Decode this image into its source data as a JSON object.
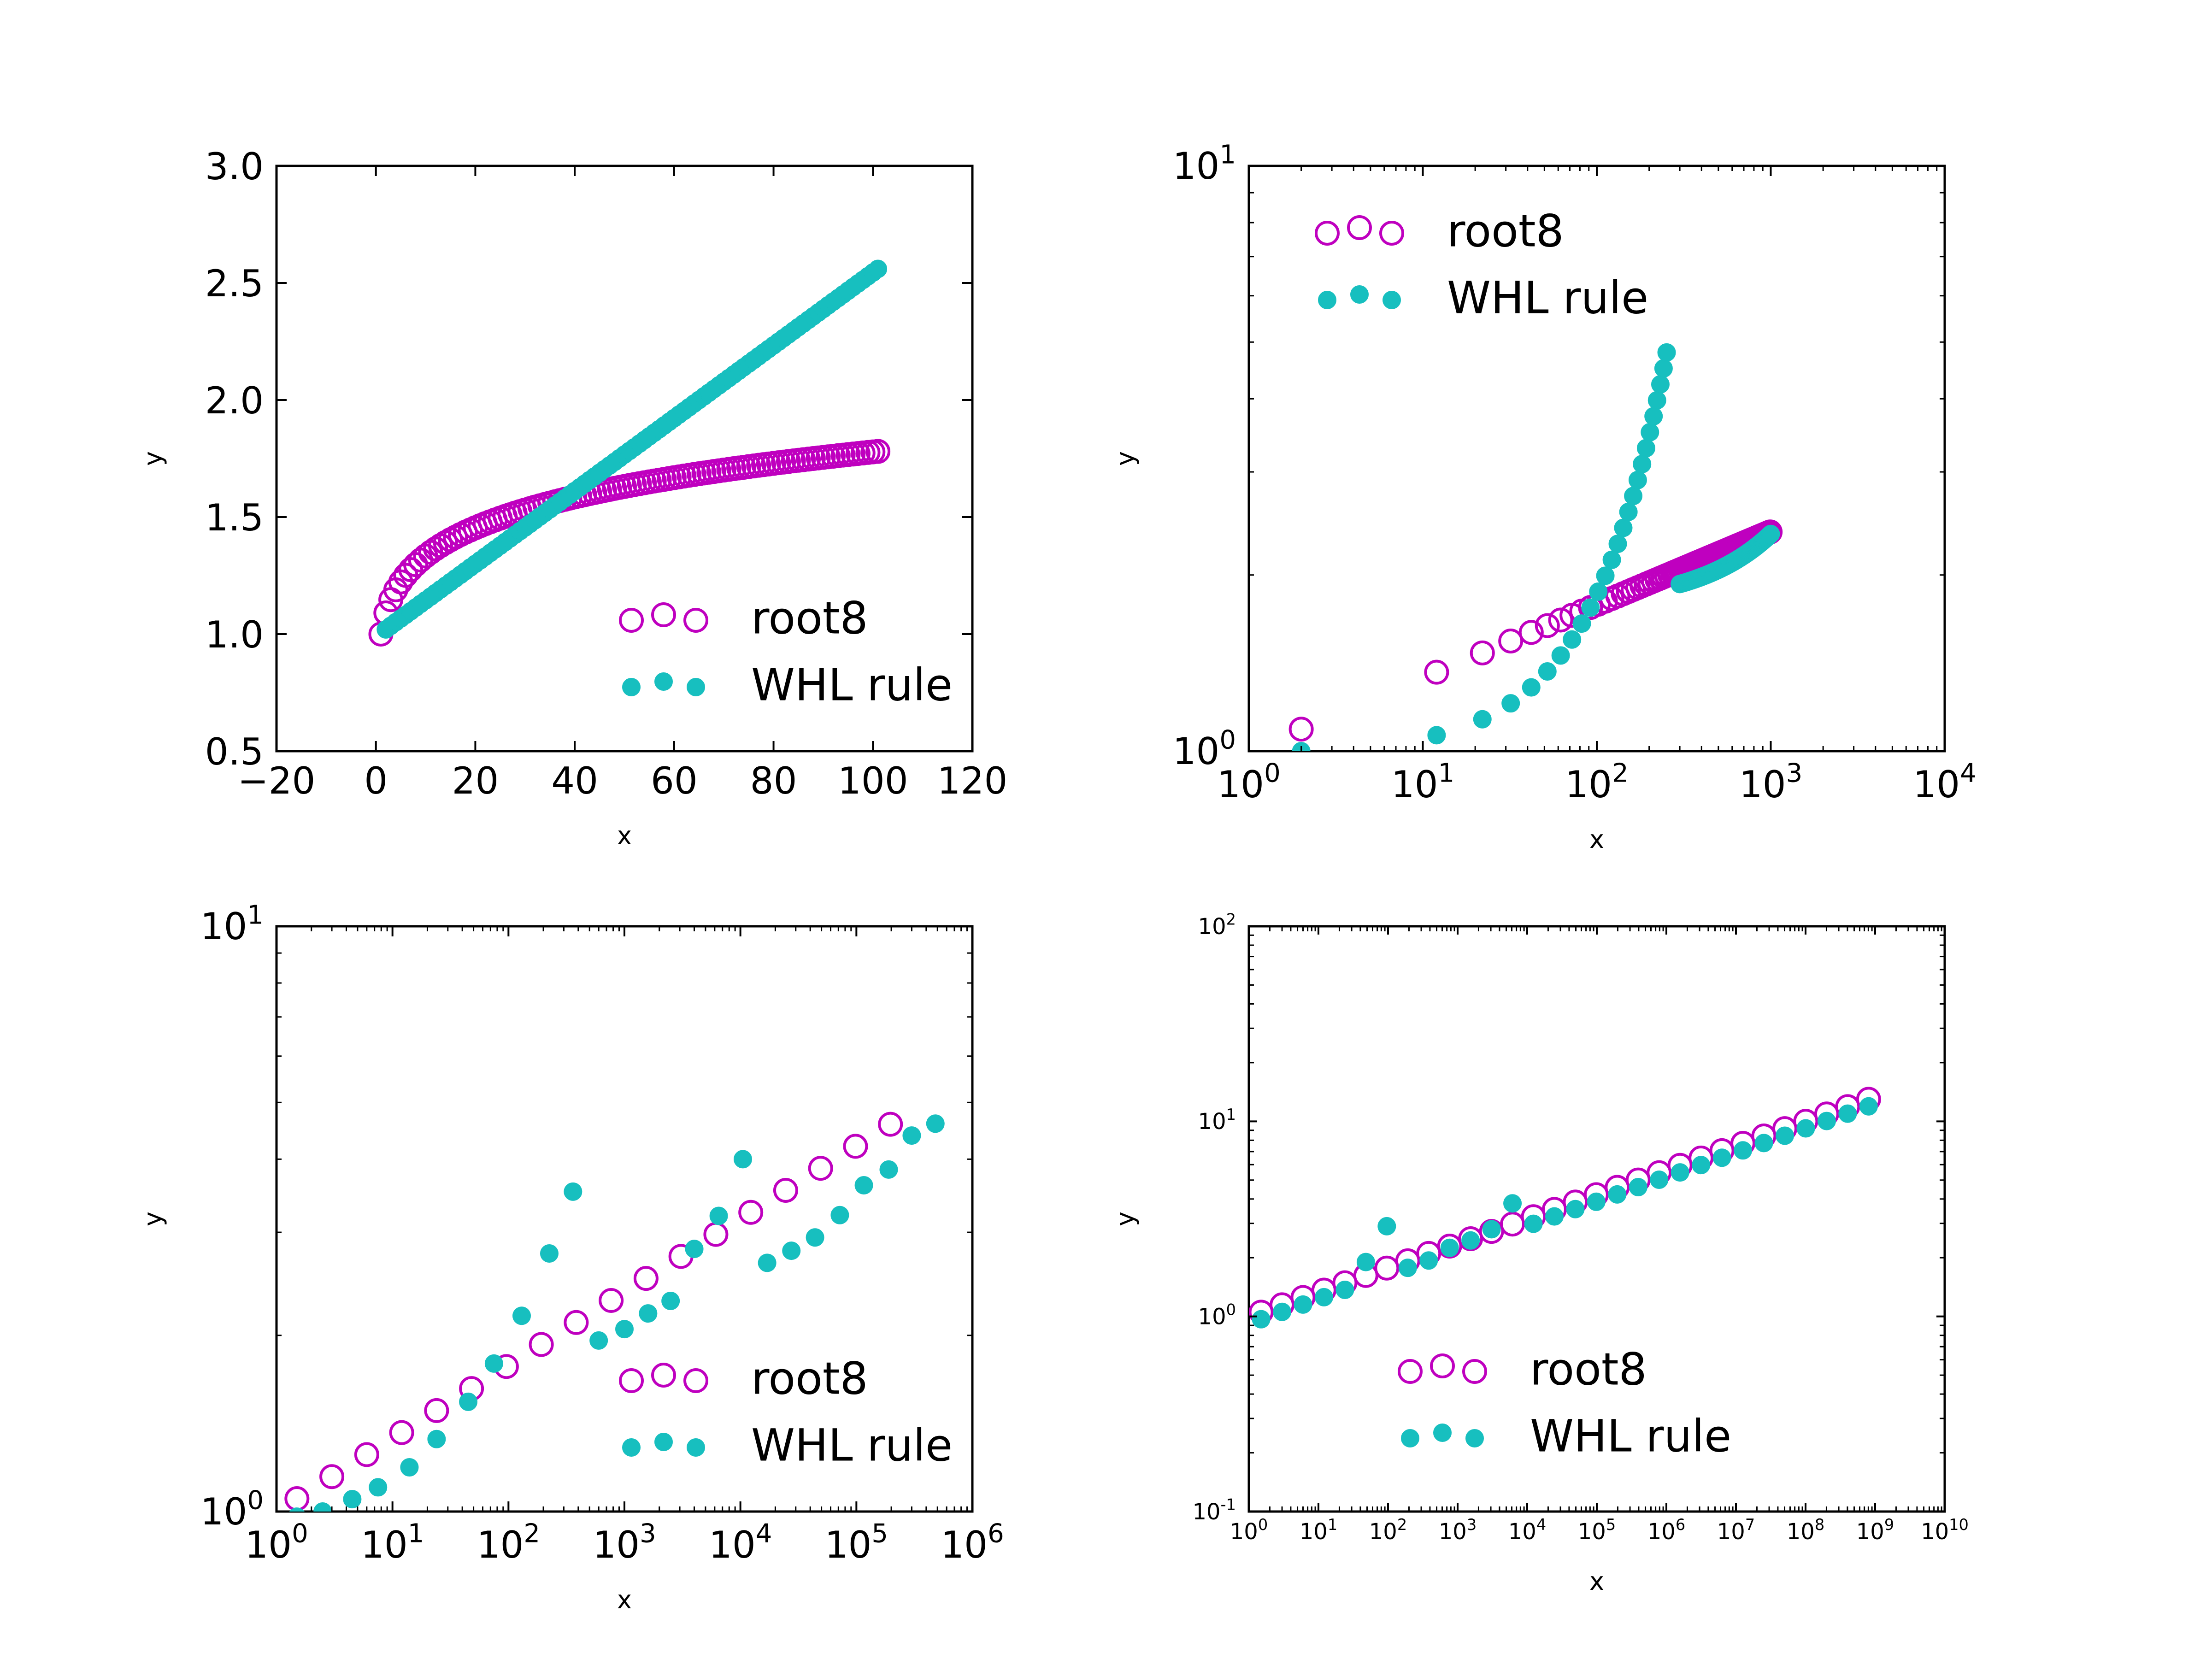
{
  "colors": {
    "root8": "#bf00bf",
    "whl": "#17bfbf",
    "axes": "#000000"
  },
  "chart_data": [
    {
      "type": "scatter",
      "xscale": "linear",
      "yscale": "linear",
      "xlabel": "x",
      "ylabel": "y",
      "xlim": [
        -20,
        120
      ],
      "ylim": [
        0.5,
        3.0
      ],
      "xticks": [
        "−20",
        "0",
        "20",
        "40",
        "60",
        "80",
        "100",
        "120"
      ],
      "yticks": [
        "0.5",
        "1.0",
        "1.5",
        "2.0",
        "2.5",
        "3.0"
      ],
      "legend": {
        "position": "lower-right",
        "entries": [
          "root8",
          "WHL rule"
        ]
      },
      "series": [
        {
          "name": "root8",
          "marker": "open-circle",
          "x_range": [
            1,
            101
          ],
          "count": 101,
          "formula": "x^(1/8)"
        },
        {
          "name": "WHL rule",
          "marker": "filled-circle",
          "x_range": [
            2,
            101
          ],
          "y_range": [
            1.02,
            2.56
          ],
          "count": 100,
          "shape": "linear"
        }
      ]
    },
    {
      "type": "scatter",
      "xscale": "log",
      "yscale": "log",
      "xlabel": "x",
      "ylabel": "y",
      "xlim": [
        1,
        10000
      ],
      "ylim": [
        1,
        10
      ],
      "xticks": [
        "1",
        "10",
        "100",
        "1000",
        "10000"
      ],
      "yticks": [
        "1",
        "10"
      ],
      "legend": {
        "position": "upper-left",
        "entries": [
          "root8",
          "WHL rule"
        ]
      },
      "series": [
        {
          "name": "root8",
          "marker": "open-circle",
          "x_range": [
            2,
            1000
          ],
          "step": 10,
          "formula": "x^(1/8)"
        },
        {
          "name": "WHL rule",
          "marker": "filled-circle",
          "segments": [
            {
              "x_range": [
                2,
                250
              ],
              "y_range": [
                1.0,
                4.8
              ],
              "step": 10
            },
            {
              "x_range": [
                300,
                1000
              ],
              "y_range": [
                1.93,
                2.35
              ],
              "step": 10
            }
          ]
        }
      ]
    },
    {
      "type": "scatter",
      "xscale": "log",
      "yscale": "log",
      "xlabel": "x",
      "ylabel": "y",
      "xlim": [
        1,
        1000000
      ],
      "ylim": [
        1,
        10
      ],
      "xticks": [
        "1",
        "10",
        "100",
        "1000",
        "10000",
        "100000",
        "1000000"
      ],
      "yticks": [
        "1",
        "10"
      ],
      "legend": {
        "position": "lower-right",
        "entries": [
          "root8",
          "WHL rule"
        ]
      },
      "series": [
        {
          "name": "root8",
          "marker": "open-circle",
          "x_values": "1.5·2^k, k=0..17",
          "formula": "x^(1/8)"
        },
        {
          "name": "WHL rule",
          "marker": "filled-circle",
          "points": [
            [
              1.5,
              0.98
            ],
            [
              2.5,
              1.0
            ],
            [
              4.5,
              1.05
            ],
            [
              7.5,
              1.1
            ],
            [
              14,
              1.19
            ],
            [
              24,
              1.33
            ],
            [
              45,
              1.54
            ],
            [
              75,
              1.79
            ],
            [
              130,
              2.16
            ],
            [
              225,
              2.76
            ],
            [
              360,
              3.52
            ],
            [
              600,
              1.96
            ],
            [
              1000,
              2.05
            ],
            [
              1600,
              2.18
            ],
            [
              2500,
              2.29
            ],
            [
              4000,
              2.81
            ],
            [
              6500,
              3.2
            ],
            [
              10500,
              4.0
            ],
            [
              17000,
              2.66
            ],
            [
              27500,
              2.79
            ],
            [
              44000,
              2.94
            ],
            [
              72000,
              3.21
            ],
            [
              116000,
              3.61
            ],
            [
              190000,
              3.84
            ],
            [
              300000,
              4.39
            ],
            [
              480000,
              4.6
            ]
          ]
        }
      ]
    },
    {
      "type": "scatter",
      "xscale": "log",
      "yscale": "log",
      "xlabel": "x",
      "ylabel": "y",
      "xlim": [
        1,
        10000000000
      ],
      "ylim": [
        0.1,
        100
      ],
      "xticks": [
        "1",
        "10",
        "100",
        "1000",
        "10000",
        "100000",
        "1000000",
        "10000000",
        "100000000",
        "1000000000",
        "10000000000"
      ],
      "yticks": [
        "0.1",
        "1",
        "10",
        "100"
      ],
      "legend": {
        "position": "lower-right",
        "entries": [
          "root8",
          "WHL rule"
        ]
      },
      "series": [
        {
          "name": "root8",
          "marker": "open-circle",
          "x_values": "1.5·2^k, k=0..29",
          "formula": "x^(1/8)"
        },
        {
          "name": "WHL rule",
          "marker": "filled-circle",
          "x_values": "1.5·2^k, k=0..29",
          "shape": "x^(1/8) with bumps at x≈40–120 and x≈2000–8000"
        }
      ]
    }
  ]
}
